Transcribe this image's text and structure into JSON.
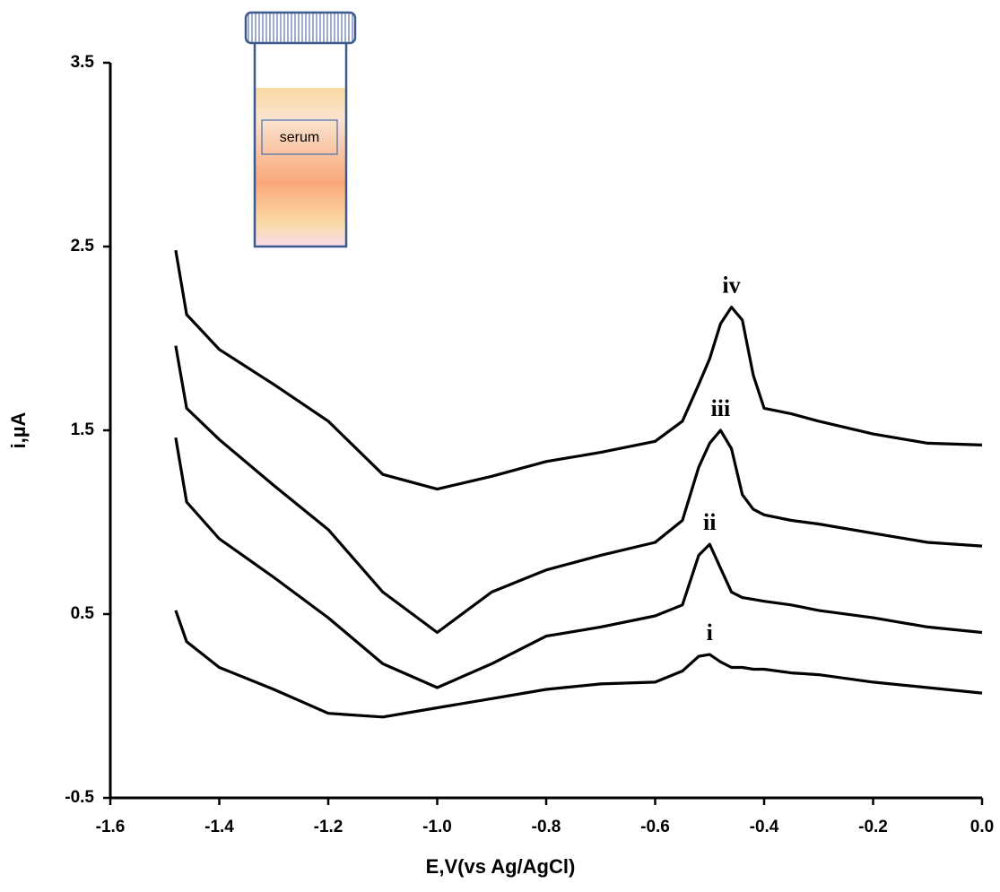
{
  "chart_data": {
    "type": "line",
    "xlabel": "E,V(vs Ag/AgCl)",
    "ylabel": "i,µA",
    "x": [
      -1.48,
      -1.46,
      -1.4,
      -1.3,
      -1.2,
      -1.1,
      -1.0,
      -0.9,
      -0.8,
      -0.7,
      -0.6,
      -0.55,
      -0.52,
      -0.5,
      -0.48,
      -0.46,
      -0.44,
      -0.42,
      -0.4,
      -0.35,
      -0.3,
      -0.2,
      -0.1,
      0.0
    ],
    "series": [
      {
        "name": "i",
        "color": "#000000",
        "values": [
          0.52,
          0.35,
          0.21,
          0.09,
          -0.04,
          -0.06,
          -0.01,
          0.04,
          0.09,
          0.12,
          0.13,
          0.19,
          0.27,
          0.28,
          0.24,
          0.21,
          0.21,
          0.2,
          0.2,
          0.18,
          0.17,
          0.13,
          0.1,
          0.07
        ]
      },
      {
        "name": "ii",
        "color": "#000000",
        "values": [
          1.46,
          1.11,
          0.91,
          0.7,
          0.48,
          0.23,
          0.1,
          0.23,
          0.38,
          0.43,
          0.49,
          0.55,
          0.82,
          0.88,
          0.75,
          0.62,
          0.59,
          0.58,
          0.57,
          0.55,
          0.52,
          0.48,
          0.43,
          0.4
        ]
      },
      {
        "name": "iii",
        "color": "#000000",
        "values": [
          1.96,
          1.62,
          1.45,
          1.2,
          0.96,
          0.62,
          0.4,
          0.62,
          0.74,
          0.82,
          0.89,
          1.01,
          1.3,
          1.43,
          1.5,
          1.4,
          1.15,
          1.07,
          1.04,
          1.01,
          0.99,
          0.94,
          0.89,
          0.87
        ]
      },
      {
        "name": "iv",
        "color": "#000000",
        "values": [
          2.48,
          2.13,
          1.94,
          1.75,
          1.55,
          1.26,
          1.18,
          1.25,
          1.33,
          1.38,
          1.44,
          1.55,
          1.75,
          1.89,
          2.08,
          2.17,
          2.1,
          1.8,
          1.62,
          1.59,
          1.55,
          1.48,
          1.43,
          1.42
        ]
      }
    ],
    "xlim": [
      -1.6,
      0.0
    ],
    "xticks": [
      -1.6,
      -1.4,
      -1.2,
      {
        "value": -1.0,
        "label": "-1.0"
      },
      -0.8,
      -0.6,
      -0.4,
      -0.2,
      {
        "value": 0.0,
        "label": "0.0"
      }
    ],
    "ylim": [
      -0.5,
      3.5
    ],
    "yticks": [
      -0.5,
      0.5,
      1.5,
      2.5,
      3.5
    ],
    "grid": false
  },
  "inset": {
    "label": "serum"
  }
}
